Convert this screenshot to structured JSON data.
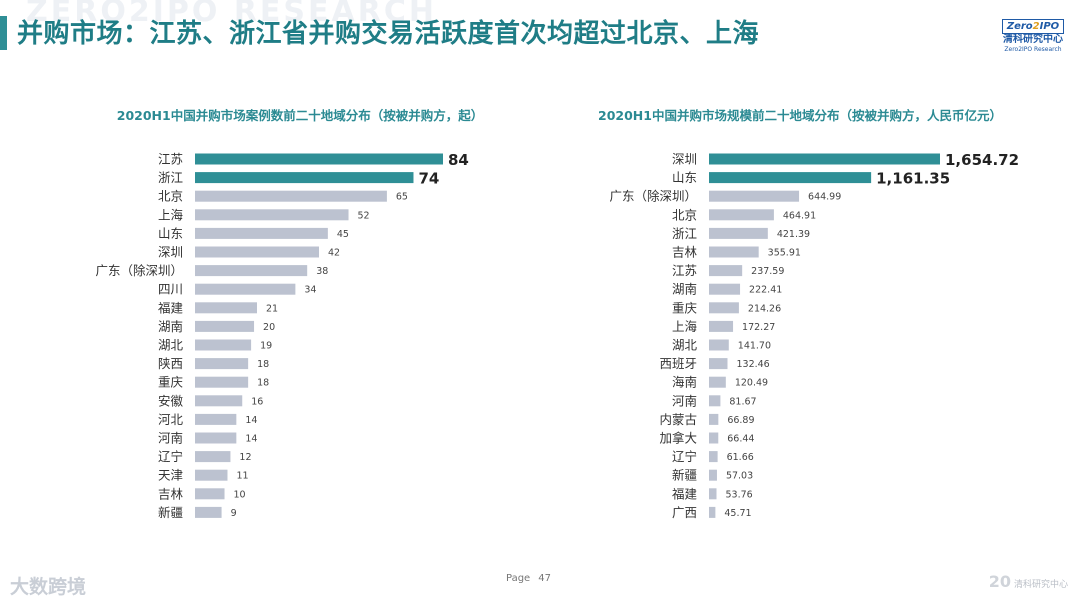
{
  "watermark": "ZERO2IPO RESEARCH",
  "page_title": "并购市场：江苏、浙江省并购交易活跃度首次均超过北京、上海",
  "logo": {
    "main": "Zero",
    "two": "2",
    "suffix": "IPO",
    "cn": "清科研究中心",
    "en": "Zero2IPO Research"
  },
  "footer": {
    "page_label": "Page",
    "page_number": "47",
    "left_brand": "大数跨境",
    "right_mark": "20",
    "right_text": "清科研究中心"
  },
  "colors": {
    "accent": "#2f8f96",
    "highlight_bar": "#2f8f96",
    "bar": "#bcc2d0",
    "title_text": "#1f7d86",
    "chart_title": "#2b8a93"
  },
  "chart_data": [
    {
      "type": "bar",
      "orientation": "horizontal",
      "title": "2020H1中国并购市场案例数前二十地域分布（按被并购方，起）",
      "categories": [
        "江苏",
        "浙江",
        "北京",
        "上海",
        "山东",
        "深圳",
        "广东（除深圳）",
        "四川",
        "福建",
        "湖南",
        "湖北",
        "陕西",
        "重庆",
        "安徽",
        "河北",
        "河南",
        "辽宁",
        "天津",
        "吉林",
        "新疆"
      ],
      "values": [
        84,
        74,
        65,
        52,
        45,
        42,
        38,
        34,
        21,
        20,
        19,
        18,
        18,
        16,
        14,
        14,
        12,
        11,
        10,
        9
      ],
      "value_labels": [
        "84",
        "74",
        "65",
        "52",
        "45",
        "42",
        "38",
        "34",
        "21",
        "20",
        "19",
        "18",
        "18",
        "16",
        "14",
        "14",
        "12",
        "11",
        "10",
        "9"
      ],
      "highlight_top": 2,
      "xlim": [
        0,
        84
      ]
    },
    {
      "type": "bar",
      "orientation": "horizontal",
      "title": "2020H1中国并购市场规模前二十地域分布（按被并购方，人民币亿元）",
      "categories": [
        "深圳",
        "山东",
        "广东（除深圳）",
        "北京",
        "浙江",
        "吉林",
        "江苏",
        "湖南",
        "重庆",
        "上海",
        "湖北",
        "西班牙",
        "海南",
        "河南",
        "内蒙古",
        "加拿大",
        "辽宁",
        "新疆",
        "福建",
        "广西"
      ],
      "values": [
        1654.72,
        1161.35,
        644.99,
        464.91,
        421.39,
        355.91,
        237.59,
        222.41,
        214.26,
        172.27,
        141.7,
        132.46,
        120.49,
        81.67,
        66.89,
        66.44,
        61.66,
        57.03,
        53.76,
        45.71
      ],
      "value_labels": [
        "1,654.72",
        "1,161.35",
        "644.99",
        "464.91",
        "421.39",
        "355.91",
        "237.59",
        "222.41",
        "214.26",
        "172.27",
        "141.70",
        "132.46",
        "120.49",
        "81.67",
        "66.89",
        "66.44",
        "61.66",
        "57.03",
        "53.76",
        "45.71"
      ],
      "highlight_top": 2,
      "xlim": [
        0,
        1654.72
      ]
    }
  ]
}
